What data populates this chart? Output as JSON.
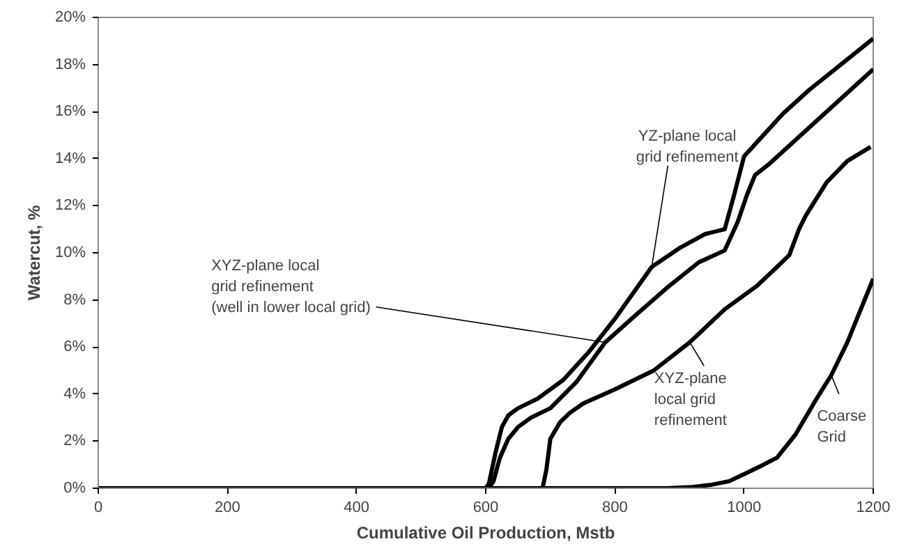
{
  "chart_data": {
    "type": "line",
    "xlabel": "Cumulative Oil Production, Mstb",
    "ylabel": "Watercut, %",
    "xlim": [
      0,
      1200
    ],
    "ylim": [
      0,
      20
    ],
    "xticks": [
      0,
      200,
      400,
      600,
      800,
      1000,
      1200
    ],
    "yticks": [
      {
        "value": 0,
        "label": "0%"
      },
      {
        "value": 2,
        "label": "2%"
      },
      {
        "value": 4,
        "label": "4%"
      },
      {
        "value": 6,
        "label": "6%"
      },
      {
        "value": 8,
        "label": "8%"
      },
      {
        "value": 10,
        "label": "10%"
      },
      {
        "value": 12,
        "label": "12%"
      },
      {
        "value": 14,
        "label": "14%"
      },
      {
        "value": 16,
        "label": "16%"
      },
      {
        "value": 18,
        "label": "18%"
      },
      {
        "value": 20,
        "label": "20%"
      }
    ],
    "grid": false,
    "marker": "none",
    "line_style": "solid",
    "series": [
      {
        "color": "#000000",
        "x": [
          0,
          600,
          605,
          615,
          625,
          635,
          650,
          680,
          720,
          760,
          800,
          857,
          900,
          940,
          970,
          985,
          1000,
          1020,
          1060,
          1100,
          1150,
          1200
        ],
        "values": [
          0,
          0,
          0.2,
          1.5,
          2.6,
          3.1,
          3.4,
          3.8,
          4.6,
          5.8,
          7.2,
          9.4,
          10.2,
          10.8,
          11.0,
          12.5,
          14.1,
          14.7,
          15.9,
          16.9,
          18.0,
          19.1
        ]
      },
      {
        "color": "#000000",
        "x": [
          0,
          605,
          612,
          622,
          635,
          650,
          670,
          700,
          740,
          785,
          830,
          880,
          930,
          970,
          990,
          1005,
          1017,
          1040,
          1080,
          1120,
          1160,
          1200
        ],
        "values": [
          0,
          0,
          0.3,
          1.3,
          2.1,
          2.6,
          3.0,
          3.4,
          4.5,
          6.2,
          7.3,
          8.5,
          9.6,
          10.1,
          11.3,
          12.5,
          13.3,
          13.8,
          14.8,
          15.8,
          16.8,
          17.8
        ]
      },
      {
        "color": "#000000",
        "x": [
          0,
          688,
          694,
          700,
          715,
          730,
          751,
          800,
          860,
          916,
          970,
          1020,
          1051,
          1070,
          1085,
          1096,
          1128,
          1160,
          1196
        ],
        "values": [
          0,
          0,
          0.8,
          2.1,
          2.8,
          3.2,
          3.6,
          4.2,
          5.0,
          6.2,
          7.6,
          8.6,
          9.4,
          9.9,
          11.0,
          11.6,
          13.0,
          13.9,
          14.5
        ]
      },
      {
        "color": "#000000",
        "x": [
          0,
          880,
          920,
          950,
          977,
          1000,
          1030,
          1051,
          1080,
          1110,
          1135,
          1160,
          1200
        ],
        "values": [
          0,
          0,
          0.05,
          0.15,
          0.3,
          0.6,
          1.0,
          1.3,
          2.3,
          3.7,
          4.8,
          6.2,
          8.9
        ]
      }
    ],
    "annotations": [
      {
        "text": "YZ-plane local\ngrid refinement",
        "x": 857,
        "y": 9.4
      },
      {
        "text": "XYZ-plane local\ngrid refinement\n(well in lower local grid)",
        "x": 785,
        "y": 6.2
      },
      {
        "text": "XYZ-plane\nlocal grid\nrefinement",
        "x": 916,
        "y": 6.2
      },
      {
        "text": "Coarse\nGrid",
        "x": 1135,
        "y": 4.8
      }
    ]
  }
}
